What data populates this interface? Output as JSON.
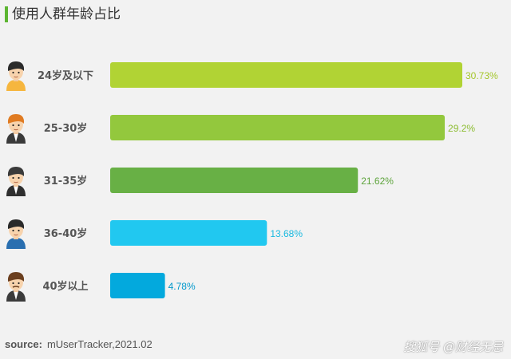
{
  "title": "使用人群年龄占比",
  "source": {
    "label": "source:",
    "text": "mUserTracker,2021.02"
  },
  "watermark": "搜狐号 @财经无忌",
  "chart_data": {
    "type": "bar",
    "orientation": "horizontal",
    "categories": [
      "24岁及以下",
      "25-30岁",
      "31-35岁",
      "36-40岁",
      "40岁以上"
    ],
    "values": [
      30.73,
      29.2,
      21.62,
      13.68,
      4.78
    ],
    "value_labels": [
      "30.73%",
      "29.2%",
      "21.62%",
      "13.68%",
      "4.78%"
    ],
    "colors": [
      "#b1d334",
      "#93c83d",
      "#68b045",
      "#21c8f0",
      "#03a9dd"
    ],
    "label_colors": [
      "#a4c62a",
      "#8dbd33",
      "#5ea43c",
      "#1ab9e0",
      "#0399cc"
    ],
    "avatars": [
      "young-male-avatar-icon",
      "redhead-male-avatar-icon",
      "suited-male-avatar-icon",
      "blue-shirt-male-avatar-icon",
      "mustache-male-avatar-icon"
    ],
    "xlim": [
      0,
      30.73
    ],
    "grid": false,
    "legend": "none"
  }
}
